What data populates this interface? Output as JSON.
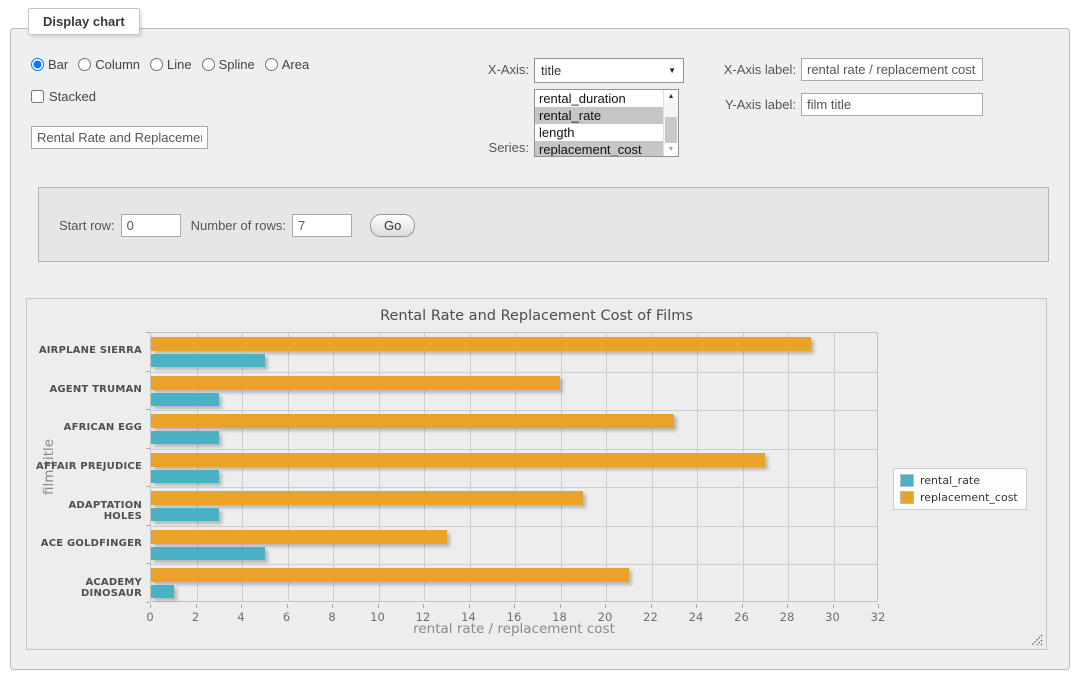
{
  "panel": {
    "legend_title": "Display chart"
  },
  "controls": {
    "chart_types": [
      {
        "label": "Bar",
        "checked": true
      },
      {
        "label": "Column",
        "checked": false
      },
      {
        "label": "Line",
        "checked": false
      },
      {
        "label": "Spline",
        "checked": false
      },
      {
        "label": "Area",
        "checked": false
      }
    ],
    "stacked_label": "Stacked",
    "stacked_checked": false,
    "title_value": "Rental Rate and Replacement Cost of Films",
    "x_axis_label": "X-Axis:",
    "x_axis_selected": "title",
    "series_label": "Series:",
    "series_options": [
      {
        "label": "rental_duration",
        "selected": false
      },
      {
        "label": "rental_rate",
        "selected": true
      },
      {
        "label": "length",
        "selected": false
      },
      {
        "label": "replacement_cost",
        "selected": true
      }
    ],
    "x_axis_label_label": "X-Axis label:",
    "x_axis_label_value": "rental rate / replacement cost",
    "y_axis_label_label": "Y-Axis label:",
    "y_axis_label_value": "film title"
  },
  "rows_form": {
    "start_row_label": "Start row:",
    "start_row_value": "0",
    "num_rows_label": "Number of rows:",
    "num_rows_value": "7",
    "go_label": "Go"
  },
  "chart_data": {
    "type": "bar",
    "orientation": "horizontal",
    "title": "Rental Rate and Replacement Cost of Films",
    "categories": [
      "AIRPLANE SIERRA",
      "AGENT TRUMAN",
      "AFRICAN EGG",
      "AFFAIR PREJUDICE",
      "ADAPTATION HOLES",
      "ACE GOLDFINGER",
      "ACADEMY DINOSAUR"
    ],
    "series": [
      {
        "name": "rental_rate",
        "color": "#4bb2c5",
        "values": [
          4.99,
          2.99,
          2.99,
          2.99,
          2.99,
          4.99,
          0.99
        ]
      },
      {
        "name": "replacement_cost",
        "color": "#EAA228",
        "values": [
          28.99,
          17.99,
          22.99,
          26.99,
          18.99,
          12.99,
          20.99
        ]
      }
    ],
    "xlabel": "rental rate / replacement cost",
    "ylabel": "film title",
    "xlim": [
      0,
      32
    ],
    "xticks": [
      0,
      2,
      4,
      6,
      8,
      10,
      12,
      14,
      16,
      18,
      20,
      22,
      24,
      26,
      28,
      30,
      32
    ],
    "grid": true,
    "legend_position": "right"
  }
}
